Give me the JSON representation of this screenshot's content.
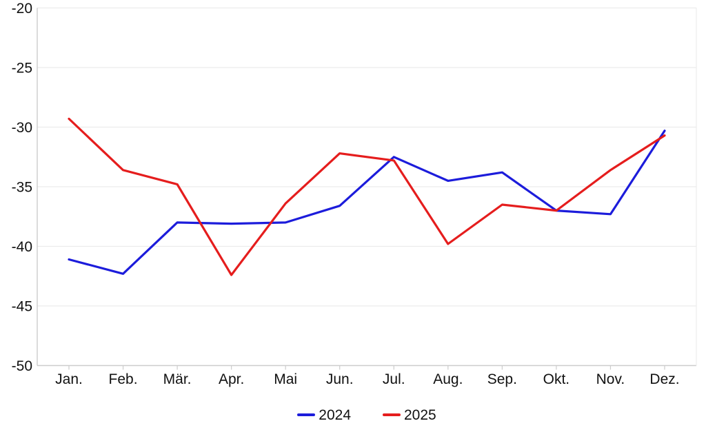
{
  "chart_data": {
    "type": "line",
    "title": "",
    "xlabel": "",
    "ylabel": "",
    "categories": [
      "Jan.",
      "Feb.",
      "Mär.",
      "Apr.",
      "Mai",
      "Jun.",
      "Jul.",
      "Aug.",
      "Sep.",
      "Okt.",
      "Nov.",
      "Dez."
    ],
    "series": [
      {
        "name": "2024",
        "color": "#1c1cdb",
        "values": [
          -41.1,
          -42.3,
          -38.0,
          -38.1,
          -38.0,
          -36.6,
          -32.5,
          -34.5,
          -33.8,
          -37.0,
          -37.3,
          -30.3
        ]
      },
      {
        "name": "2025",
        "color": "#e51d1d",
        "values": [
          -29.3,
          -33.6,
          -34.8,
          -42.4,
          -36.4,
          -32.2,
          -32.8,
          -39.8,
          -36.5,
          -37.0,
          -33.6,
          -30.7
        ]
      }
    ],
    "ylim": [
      -50,
      -20
    ],
    "yticks": [
      -20,
      -25,
      -30,
      -35,
      -40,
      -45,
      -50
    ],
    "grid": true,
    "legend_position": "bottom-center"
  },
  "styles": {
    "background": "#ffffff",
    "grid_color": "#ececec",
    "axis_color": "#cccccc",
    "text_color": "#111111"
  }
}
